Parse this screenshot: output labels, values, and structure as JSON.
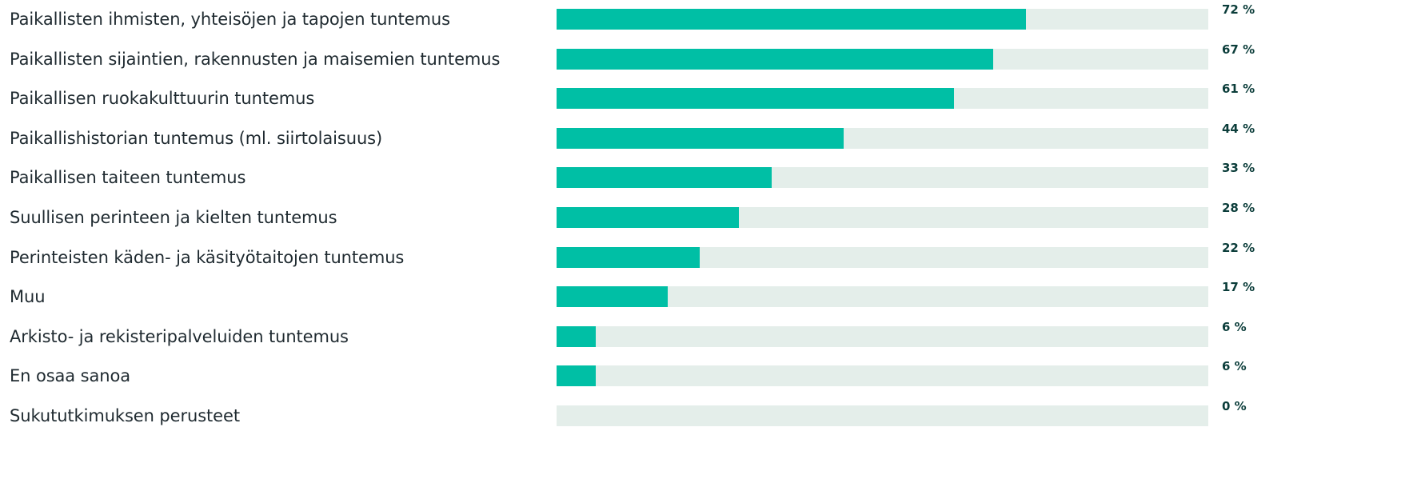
{
  "chart_data": {
    "type": "bar",
    "orientation": "horizontal",
    "categories": [
      "Paikallisten ihmisten, yhteisöjen ja tapojen tuntemus",
      "Paikallisten sijaintien, rakennusten ja maisemien tuntemus",
      "Paikallisen ruokakulttuurin tuntemus",
      "Paikallishistorian tuntemus (ml. siirtolaisuus)",
      "Paikallisen taiteen tuntemus",
      "Suullisen perinteen ja kielten tuntemus",
      "Perinteisten käden- ja käsityötaitojen tuntemus",
      "Muu",
      "Arkisto- ja rekisteripalveluiden tuntemus",
      "En osaa sanoa",
      "Sukututkimuksen perusteet"
    ],
    "values": [
      72,
      67,
      61,
      44,
      33,
      28,
      22,
      17,
      6,
      6,
      0
    ],
    "value_labels": [
      "72 %",
      "67 %",
      "61 %",
      "44 %",
      "33 %",
      "28 %",
      "22 %",
      "17 %",
      "6 %",
      "6 %",
      "0 %"
    ],
    "xlim": [
      0,
      100
    ],
    "unit": "%",
    "colors": {
      "bar": "#00bfa5",
      "track": "#e4eeea",
      "label": "#1f2a30",
      "value": "#0b3d3a"
    }
  }
}
